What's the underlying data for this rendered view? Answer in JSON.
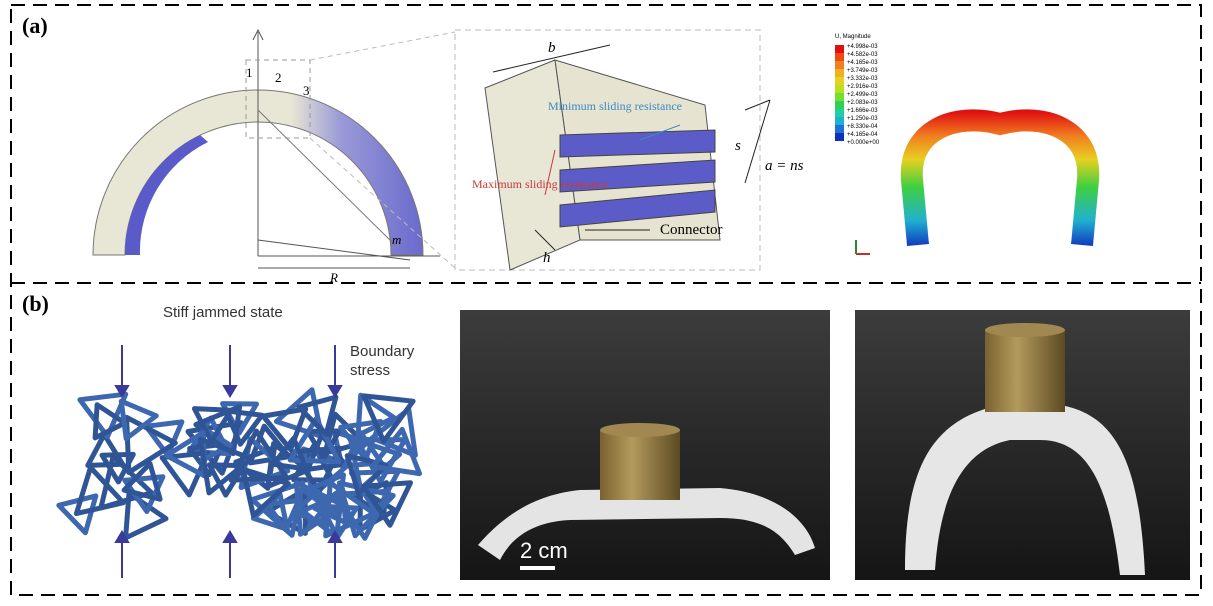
{
  "panel_a": {
    "label": "(a)",
    "arch": {
      "block_numbers": [
        "1",
        "2",
        "3"
      ],
      "m": "m",
      "R": "R"
    },
    "connector": {
      "b": "b",
      "min_label": "Minimum sliding resistance",
      "max_label": "Maximum sliding resistance",
      "s": "s",
      "a": "a = ns",
      "h": "h",
      "connector": "Connector"
    },
    "contour": {
      "title": "U, Magnitude",
      "levels": [
        "+4.998e-03",
        "+4.582e-03",
        "+4.165e-03",
        "+3.749e-03",
        "+3.332e-03",
        "+2.916e-03",
        "+2.499e-03",
        "+2.083e-03",
        "+1.666e-03",
        "+1.250e-03",
        "+8.330e-04",
        "+4.165e-04",
        "+0.000e+00"
      ]
    }
  },
  "panel_b": {
    "label": "(b)",
    "title": "Stiff jammed state",
    "boundary": [
      "Boundary",
      "stress"
    ],
    "scale": "2 cm"
  }
}
